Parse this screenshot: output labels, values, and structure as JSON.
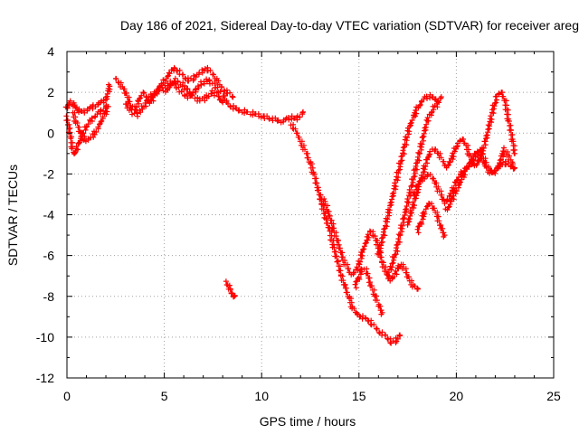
{
  "chart_data": {
    "type": "scatter",
    "title": "Day 186 of 2021, Sidereal Day-to-day VTEC variation (SDTVAR) for receiver areg",
    "xlabel": "GPS time / hours",
    "ylabel": "SDTVAR / TECUs",
    "xlim": [
      0,
      25
    ],
    "ylim": [
      -12,
      4
    ],
    "x_ticks": [
      "0",
      "5",
      "10",
      "15",
      "20",
      "25"
    ],
    "y_ticks": [
      "4",
      "2",
      "0",
      "-2",
      "-4",
      "-6",
      "-8",
      "-10",
      "-12"
    ],
    "grid": true,
    "marker": "plus",
    "color": "#ff0000",
    "series": [
      {
        "x": [
          0.0,
          0.1,
          0.2,
          0.3,
          0.4,
          0.5,
          0.6,
          0.8,
          1.0,
          1.2,
          1.4,
          1.6,
          1.8,
          2.0,
          2.1,
          2.2
        ],
        "y": [
          1.2,
          1.4,
          1.5,
          1.4,
          1.3,
          1.2,
          1.1,
          1.0,
          1.1,
          1.2,
          1.3,
          1.4,
          1.5,
          1.6,
          2.0,
          2.3
        ]
      },
      {
        "x": [
          0.0,
          0.1,
          0.2,
          0.3,
          0.4,
          0.5,
          0.6,
          0.7,
          0.8,
          1.0,
          1.2,
          1.4,
          1.6,
          1.8,
          2.0
        ],
        "y": [
          0.8,
          0.2,
          -0.3,
          -0.8,
          -1.0,
          -0.8,
          -0.5,
          -0.3,
          0.0,
          0.3,
          0.6,
          0.8,
          1.0,
          1.1,
          1.3
        ]
      },
      {
        "x": [
          0.3,
          0.5,
          0.7,
          1.0,
          1.3,
          1.6,
          1.9,
          2.1
        ],
        "y": [
          1.0,
          0.5,
          0.0,
          -0.4,
          -0.2,
          0.3,
          0.8,
          1.3
        ]
      },
      {
        "x": [
          2.5,
          2.7,
          2.9,
          3.1,
          3.3,
          3.5,
          3.7,
          3.9,
          4.1,
          4.3,
          4.5,
          4.7,
          4.9,
          5.1,
          5.3,
          5.5,
          5.7,
          5.9,
          6.1,
          6.3,
          6.5,
          6.7,
          6.9,
          7.1,
          7.3,
          7.5,
          7.7,
          7.9,
          8.1,
          8.3,
          8.5
        ],
        "y": [
          2.7,
          2.5,
          2.2,
          1.8,
          1.3,
          1.2,
          1.6,
          2.0,
          1.8,
          1.5,
          1.9,
          2.2,
          2.5,
          2.7,
          3.0,
          3.2,
          3.1,
          2.9,
          2.7,
          2.6,
          2.7,
          2.9,
          3.0,
          3.2,
          3.1,
          2.9,
          2.6,
          2.3,
          2.1,
          2.0,
          1.8
        ]
      },
      {
        "x": [
          3.0,
          3.2,
          3.4,
          3.6,
          3.8,
          4.0,
          4.2,
          4.4,
          4.6,
          4.8,
          5.0,
          5.2,
          5.4,
          5.6,
          5.8,
          6.0,
          6.2,
          6.4,
          6.6,
          6.8,
          7.0,
          7.2,
          7.4,
          7.6,
          7.8,
          8.0,
          8.2
        ],
        "y": [
          1.5,
          1.2,
          1.0,
          0.9,
          1.1,
          1.4,
          1.7,
          1.9,
          2.0,
          2.2,
          2.3,
          2.4,
          2.5,
          2.3,
          2.1,
          1.9,
          1.8,
          1.9,
          2.1,
          2.3,
          2.5,
          2.6,
          2.5,
          2.3,
          2.1,
          1.9,
          1.6
        ]
      },
      {
        "x": [
          5.0,
          5.3,
          5.6,
          5.9,
          6.2,
          6.5,
          6.8,
          7.1,
          7.4,
          7.7,
          8.0
        ],
        "y": [
          2.0,
          2.3,
          2.6,
          2.4,
          2.1,
          1.8,
          1.6,
          1.7,
          2.0,
          1.9,
          1.5
        ]
      },
      {
        "x": [
          8.3,
          8.5,
          8.7,
          8.9,
          9.1,
          9.3,
          9.5,
          9.7,
          9.9,
          10.1,
          10.3,
          10.5,
          10.7,
          10.9,
          11.1,
          11.3,
          11.5,
          11.7,
          11.9,
          12.1
        ],
        "y": [
          1.4,
          1.3,
          1.2,
          1.1,
          1.1,
          1.0,
          1.0,
          0.9,
          0.9,
          0.8,
          0.8,
          0.7,
          0.7,
          0.6,
          0.6,
          0.7,
          0.8,
          0.7,
          0.8,
          1.0
        ]
      },
      {
        "x": [
          11.5,
          11.7,
          11.9,
          12.1,
          12.3,
          12.5,
          12.7,
          12.9,
          13.1,
          13.3,
          13.5,
          13.7,
          13.9,
          14.1,
          14.3,
          14.5,
          14.7,
          14.9,
          15.1,
          15.3,
          15.5,
          15.7,
          15.9,
          16.1,
          16.3,
          16.5,
          16.7,
          16.9,
          17.1
        ],
        "y": [
          0.4,
          0.2,
          -0.2,
          -0.6,
          -1.0,
          -1.5,
          -2.0,
          -2.8,
          -3.5,
          -4.2,
          -4.8,
          -5.6,
          -6.3,
          -7.0,
          -7.6,
          -8.1,
          -8.6,
          -8.9,
          -9.0,
          -9.1,
          -9.2,
          -9.4,
          -9.6,
          -9.8,
          -9.9,
          -10.1,
          -10.3,
          -10.2,
          -9.9
        ]
      },
      {
        "x": [
          13.0,
          13.2,
          13.4,
          13.6,
          13.8,
          14.0,
          14.2,
          14.4,
          14.6,
          14.8,
          15.0,
          15.2,
          15.4,
          15.6,
          15.8,
          16.0,
          16.2,
          16.4,
          16.6,
          16.8,
          17.0,
          17.2,
          17.4,
          17.6,
          17.8,
          18.0
        ],
        "y": [
          -3.0,
          -3.3,
          -3.8,
          -4.4,
          -5.0,
          -5.6,
          -6.2,
          -6.6,
          -6.9,
          -6.8,
          -6.4,
          -5.8,
          -5.2,
          -4.8,
          -5.0,
          -5.6,
          -6.3,
          -6.9,
          -7.2,
          -7.0,
          -6.6,
          -6.4,
          -6.8,
          -7.2,
          -7.5,
          -7.6
        ]
      },
      {
        "x": [
          14.8,
          15.0,
          15.2,
          15.4,
          15.6,
          15.8,
          16.0,
          16.2
        ],
        "y": [
          -7.5,
          -7.0,
          -6.6,
          -6.8,
          -7.4,
          -7.9,
          -8.4,
          -8.8
        ]
      },
      {
        "x": [
          16.0,
          16.2,
          16.4,
          16.6,
          16.8,
          17.0,
          17.2,
          17.4,
          17.6,
          17.8,
          18.0,
          18.2,
          18.4,
          18.6,
          18.8,
          19.0,
          19.2
        ],
        "y": [
          -6.0,
          -5.2,
          -4.4,
          -3.6,
          -2.8,
          -2.0,
          -1.2,
          -0.4,
          0.3,
          0.8,
          1.2,
          1.5,
          1.7,
          1.8,
          1.7,
          1.6,
          1.7
        ]
      },
      {
        "x": [
          16.5,
          16.7,
          16.9,
          17.1,
          17.3,
          17.5,
          17.7,
          17.9,
          18.1,
          18.3,
          18.5,
          18.7,
          18.9,
          19.1
        ],
        "y": [
          -7.0,
          -6.4,
          -5.8,
          -5.0,
          -4.2,
          -3.4,
          -2.6,
          -1.8,
          -1.0,
          -0.2,
          0.6,
          1.0,
          1.3,
          1.5
        ]
      },
      {
        "x": [
          17.5,
          17.7,
          17.9,
          18.1,
          18.3,
          18.5,
          18.7,
          18.9,
          19.1,
          19.3,
          19.5,
          19.7,
          19.9,
          20.1,
          20.3,
          20.5,
          20.7,
          20.9,
          21.1,
          21.3,
          21.5,
          21.7,
          21.9,
          22.1,
          22.3,
          22.5,
          22.7,
          22.9,
          23.0
        ],
        "y": [
          -4.5,
          -3.8,
          -3.2,
          -2.5,
          -1.9,
          -1.3,
          -0.9,
          -0.8,
          -1.0,
          -1.4,
          -1.7,
          -1.4,
          -0.9,
          -0.5,
          -0.3,
          -0.6,
          -1.1,
          -1.6,
          -1.5,
          -1.0,
          -0.4,
          0.4,
          1.2,
          1.8,
          2.0,
          1.6,
          0.6,
          -0.4,
          -1.0
        ]
      },
      {
        "x": [
          17.8,
          18.0,
          18.2,
          18.4,
          18.6,
          18.8,
          19.0,
          19.2,
          19.4,
          19.6,
          19.8,
          20.0,
          20.2,
          20.4,
          20.6,
          20.8,
          21.0,
          21.2,
          21.4,
          21.6,
          21.8,
          22.0,
          22.2,
          22.4,
          22.6,
          22.8,
          23.0
        ],
        "y": [
          -3.0,
          -2.6,
          -2.3,
          -2.1,
          -2.0,
          -2.2,
          -2.6,
          -3.0,
          -3.4,
          -3.2,
          -2.8,
          -2.4,
          -2.0,
          -1.8,
          -1.6,
          -1.4,
          -1.0,
          -0.8,
          -1.2,
          -1.6,
          -1.9,
          -1.8,
          -1.6,
          -1.4,
          -1.5,
          -1.6,
          -1.7
        ]
      },
      {
        "x": [
          18.0,
          18.2,
          18.4,
          18.6,
          18.8,
          19.0,
          19.2,
          19.4
        ],
        "y": [
          -4.8,
          -4.3,
          -3.8,
          -3.4,
          -3.6,
          -4.0,
          -4.6,
          -5.0
        ]
      },
      {
        "x": [
          19.5,
          19.7,
          19.9,
          20.1,
          20.3,
          20.5,
          20.7,
          20.9,
          21.1,
          21.3,
          21.5,
          21.7,
          21.9,
          22.1,
          22.3,
          22.5,
          22.7,
          22.9
        ],
        "y": [
          -3.8,
          -3.4,
          -3.0,
          -2.6,
          -2.2,
          -1.8,
          -1.5,
          -1.2,
          -1.0,
          -1.3,
          -1.6,
          -1.9,
          -2.0,
          -1.8,
          -1.2,
          -0.8,
          -1.2,
          -1.5
        ]
      },
      {
        "x": [
          8.2,
          8.3,
          8.4,
          8.5,
          8.6
        ],
        "y": [
          -7.3,
          -7.5,
          -7.7,
          -7.9,
          -8.0
        ]
      }
    ]
  }
}
